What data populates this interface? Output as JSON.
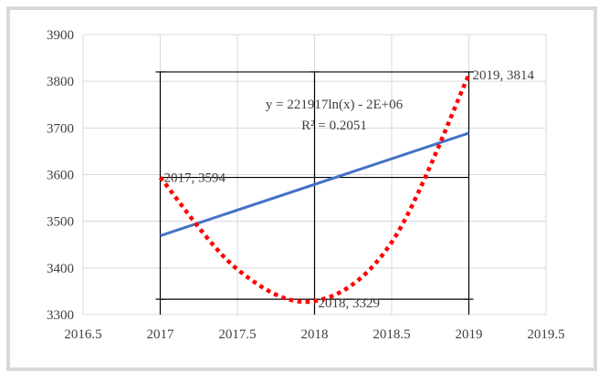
{
  "chart_data": {
    "type": "scatter",
    "title": "",
    "xlabel": "",
    "ylabel": "",
    "xlim": [
      2016.5,
      2019.5
    ],
    "ylim": [
      3300,
      3900
    ],
    "x_ticks": [
      2016.5,
      2017,
      2017.5,
      2018,
      2018.5,
      2019,
      2019.5
    ],
    "x_tick_labels": [
      "2016.5",
      "2017",
      "2017.5",
      "2018",
      "2018.5",
      "2019",
      "2019.5"
    ],
    "y_ticks": [
      3300,
      3400,
      3500,
      3600,
      3700,
      3800,
      3900
    ],
    "y_tick_labels": [
      "3300",
      "3400",
      "3500",
      "3600",
      "3700",
      "3800",
      "3900"
    ],
    "grid": true,
    "points": [
      {
        "x": 2017,
        "y": 3594,
        "label": "2017, 3594"
      },
      {
        "x": 2018,
        "y": 3329,
        "label": "2018, 3329"
      },
      {
        "x": 2019,
        "y": 3814,
        "label": "2019, 3814"
      }
    ],
    "trendline": {
      "type": "logarithmic",
      "color": "#4472c4",
      "equation": "y = 221917ln(x) - 2E+06",
      "r_squared": "R² = 0.2051",
      "start": {
        "x": 2017,
        "y": 3469
      },
      "end": {
        "x": 2019,
        "y": 3689
      }
    },
    "smoothed_line": {
      "style": "dotted",
      "color": "#ff0000",
      "points": [
        {
          "x": 2017,
          "y": 3594
        },
        {
          "x": 2017.5,
          "y": 3397
        },
        {
          "x": 2018,
          "y": 3329
        },
        {
          "x": 2018.5,
          "y": 3455
        },
        {
          "x": 2019,
          "y": 3814
        }
      ]
    },
    "drop_lines": true
  }
}
